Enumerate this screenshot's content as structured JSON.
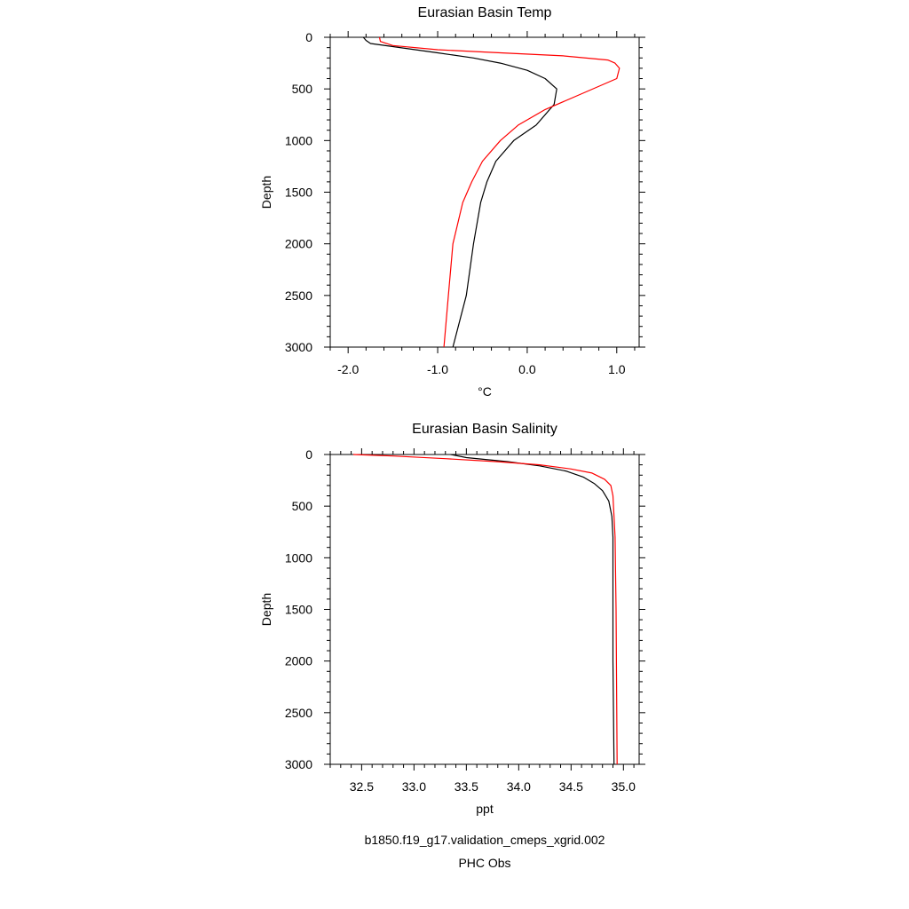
{
  "chart_data": [
    {
      "type": "line",
      "title": "Eurasian Basin Temp",
      "xlabel": "°C",
      "ylabel": "Depth",
      "xlim": [
        -2.2,
        1.25
      ],
      "ylim": [
        3000,
        0
      ],
      "y_inverted": true,
      "xticks": [
        -2.0,
        -1.0,
        0.0,
        1.0
      ],
      "xtick_labels": [
        "-2.0",
        "-1.0",
        "0.0",
        "1.0"
      ],
      "yticks": [
        0,
        500,
        1000,
        1500,
        2000,
        2500,
        3000
      ],
      "ytick_labels": [
        "0",
        "500",
        "1000",
        "1500",
        "2000",
        "2500",
        "3000"
      ],
      "grid": false,
      "series": [
        {
          "name": "b1850.f19_g17.validation_cmeps_xgrid.002",
          "color": "#000000",
          "points": [
            [
              -1.83,
              0
            ],
            [
              -1.8,
              30
            ],
            [
              -1.75,
              60
            ],
            [
              -1.5,
              90
            ],
            [
              -1.0,
              150
            ],
            [
              -0.6,
              200
            ],
            [
              -0.3,
              250
            ],
            [
              0.0,
              320
            ],
            [
              0.2,
              400
            ],
            [
              0.33,
              500
            ],
            [
              0.3,
              650
            ],
            [
              0.1,
              850
            ],
            [
              -0.15,
              1000
            ],
            [
              -0.35,
              1200
            ],
            [
              -0.45,
              1400
            ],
            [
              -0.52,
              1600
            ],
            [
              -0.6,
              2000
            ],
            [
              -0.68,
              2500
            ],
            [
              -0.83,
              3000
            ]
          ]
        },
        {
          "name": "PHC Obs",
          "color": "#ff0000",
          "points": [
            [
              -1.65,
              0
            ],
            [
              -1.64,
              40
            ],
            [
              -1.5,
              80
            ],
            [
              -1.0,
              120
            ],
            [
              -0.3,
              150
            ],
            [
              0.4,
              180
            ],
            [
              0.9,
              220
            ],
            [
              0.98,
              250
            ],
            [
              1.03,
              300
            ],
            [
              1.0,
              400
            ],
            [
              0.6,
              550
            ],
            [
              0.2,
              700
            ],
            [
              -0.1,
              850
            ],
            [
              -0.3,
              1000
            ],
            [
              -0.5,
              1200
            ],
            [
              -0.62,
              1400
            ],
            [
              -0.72,
              1600
            ],
            [
              -0.83,
              2000
            ],
            [
              -0.88,
              2500
            ],
            [
              -0.93,
              3000
            ]
          ]
        }
      ]
    },
    {
      "type": "line",
      "title": "Eurasian Basin Salinity",
      "xlabel": "ppt",
      "ylabel": "Depth",
      "xlim": [
        32.2,
        35.15
      ],
      "ylim": [
        3000,
        0
      ],
      "y_inverted": true,
      "xticks": [
        32.5,
        33.0,
        33.5,
        34.0,
        34.5,
        35.0
      ],
      "xtick_labels": [
        "32.5",
        "33.0",
        "33.5",
        "34.0",
        "34.5",
        "35.0"
      ],
      "yticks": [
        0,
        500,
        1000,
        1500,
        2000,
        2500,
        3000
      ],
      "ytick_labels": [
        "0",
        "500",
        "1000",
        "1500",
        "2000",
        "2500",
        "3000"
      ],
      "grid": false,
      "series": [
        {
          "name": "b1850.f19_g17.validation_cmeps_xgrid.002",
          "color": "#000000",
          "points": [
            [
              33.35,
              0
            ],
            [
              33.5,
              30
            ],
            [
              33.9,
              70
            ],
            [
              34.2,
              110
            ],
            [
              34.45,
              160
            ],
            [
              34.62,
              220
            ],
            [
              34.72,
              280
            ],
            [
              34.8,
              350
            ],
            [
              34.86,
              450
            ],
            [
              34.89,
              600
            ],
            [
              34.9,
              800
            ],
            [
              34.9,
              1000
            ],
            [
              34.9,
              2000
            ],
            [
              34.91,
              3000
            ]
          ]
        },
        {
          "name": "PHC Obs",
          "color": "#ff0000",
          "points": [
            [
              32.42,
              0
            ],
            [
              32.8,
              15
            ],
            [
              33.3,
              40
            ],
            [
              33.8,
              70
            ],
            [
              34.2,
              100
            ],
            [
              34.5,
              140
            ],
            [
              34.7,
              180
            ],
            [
              34.82,
              240
            ],
            [
              34.88,
              300
            ],
            [
              34.9,
              400
            ],
            [
              34.92,
              800
            ],
            [
              34.93,
              1500
            ],
            [
              34.94,
              3000
            ]
          ]
        }
      ]
    }
  ],
  "legend": {
    "entries": [
      {
        "label": "b1850.f19_g17.validation_cmeps_xgrid.002",
        "color": "#000000"
      },
      {
        "label": "PHC Obs",
        "color": "#ff0000"
      }
    ]
  }
}
